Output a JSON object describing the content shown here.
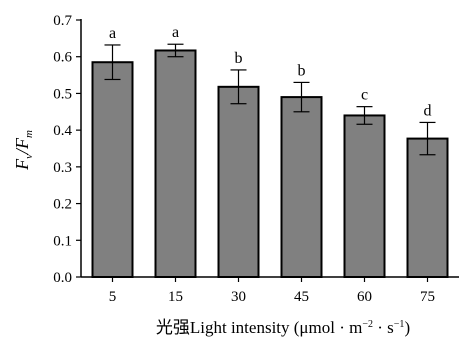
{
  "chart_data": {
    "type": "bar",
    "categories": [
      "5",
      "15",
      "30",
      "45",
      "60",
      "75"
    ],
    "values": [
      0.585,
      0.617,
      0.518,
      0.49,
      0.44,
      0.377
    ],
    "errors": [
      0.047,
      0.017,
      0.046,
      0.04,
      0.024,
      0.044
    ],
    "significance": [
      "a",
      "a",
      "b",
      "b",
      "c",
      "d"
    ],
    "ylim": [
      0.0,
      0.7
    ],
    "yticks": [
      "0.0",
      "0.1",
      "0.2",
      "0.3",
      "0.4",
      "0.5",
      "0.6",
      "0.7"
    ],
    "xlabel": {
      "zh": "光强",
      "en": "Light intensity (μmol · m",
      "exp1": "−2",
      "mid": " · s",
      "exp2": "−1",
      "end": ")"
    },
    "ylabel": {
      "a": "F",
      "a_sub": "v",
      "sep": "/F",
      "b_sub": "m"
    },
    "bar_color": "#808080",
    "bar_stroke": "#000000"
  }
}
